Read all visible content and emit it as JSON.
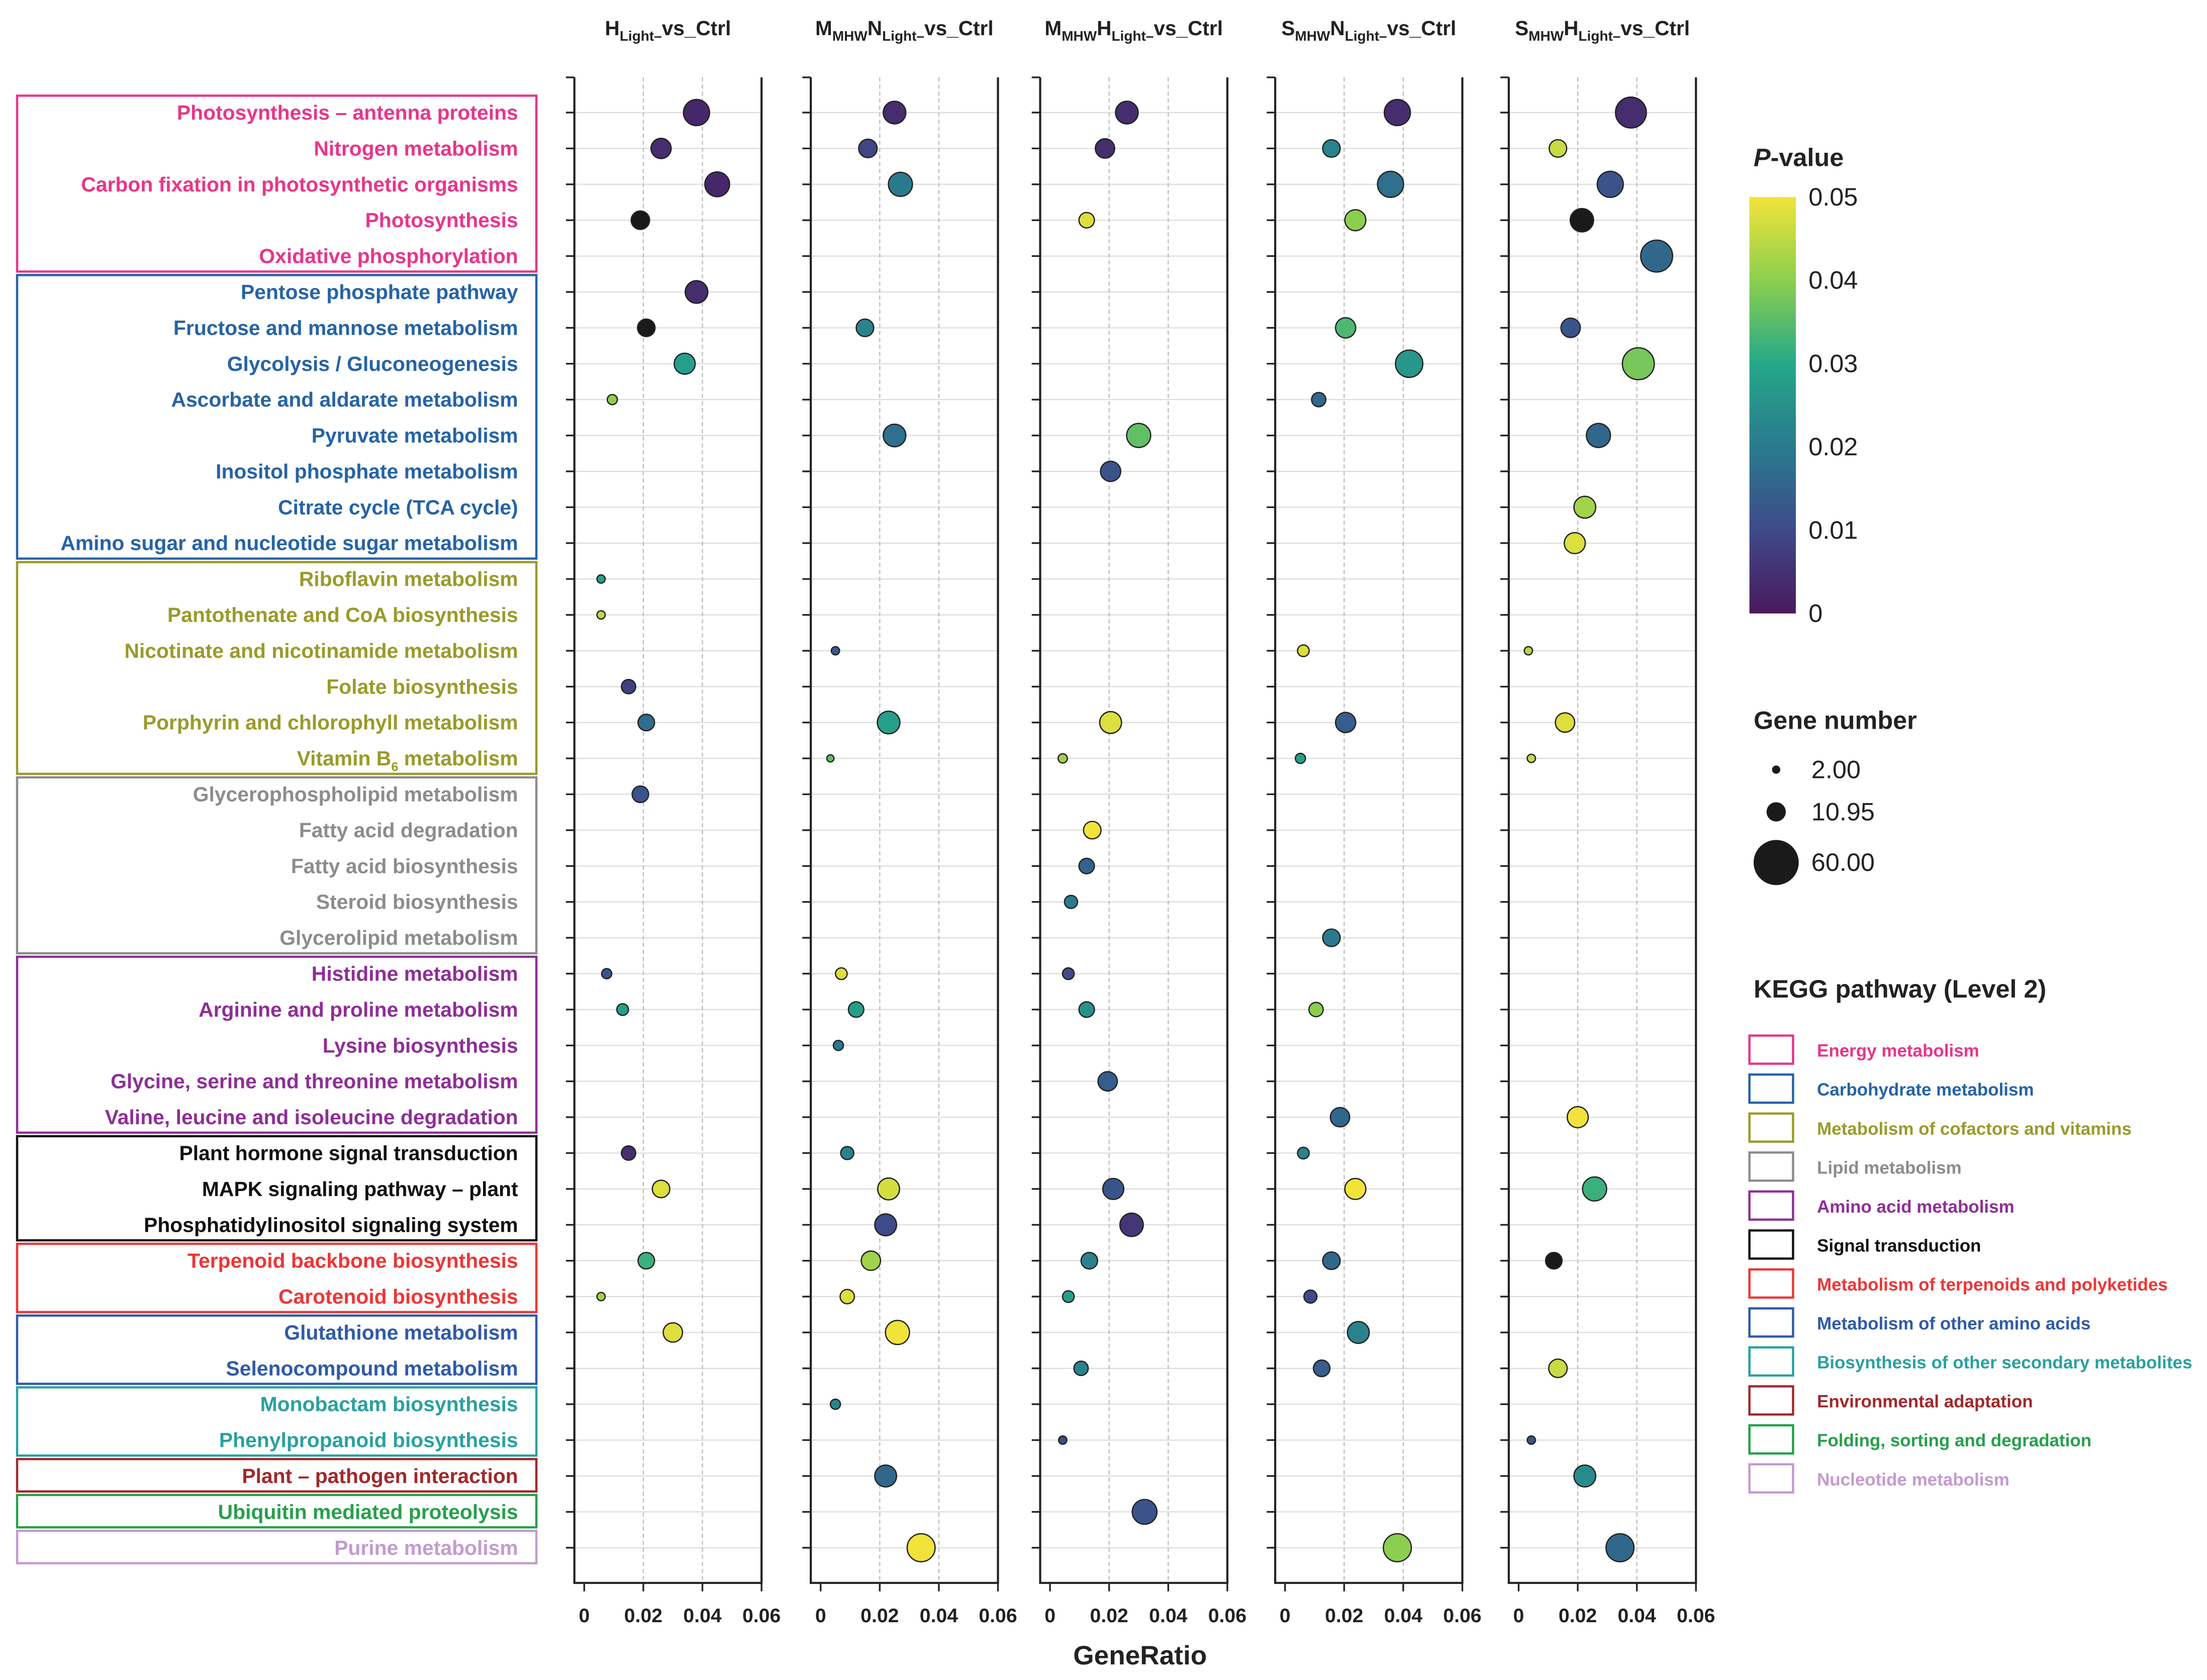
{
  "chart_data": {
    "type": "scatter",
    "subtype": "bubble",
    "xlabel": "GeneRatio",
    "xticks": [
      "0",
      "0.02",
      "0.04",
      "0.06"
    ],
    "xlim": [
      0,
      0.06
    ],
    "grid": true,
    "panels": [
      {
        "title_parts": [
          {
            "t": "H"
          },
          {
            "t": "Light–",
            "sub": true
          },
          {
            "t": "vs_Ctrl"
          }
        ],
        "points": [
          [
            0,
            0.038,
            0.003,
            20
          ],
          [
            1,
            0.026,
            0.004,
            12
          ],
          [
            2,
            0.045,
            0.003,
            18
          ],
          [
            3,
            0.019,
            0,
            10
          ],
          [
            5,
            0.038,
            0.004,
            15
          ],
          [
            6,
            0.021,
            0,
            9
          ],
          [
            7,
            0.034,
            0.028,
            13
          ],
          [
            8,
            0.0095,
            0.04,
            3
          ],
          [
            13,
            0.0057,
            0.028,
            2
          ],
          [
            14,
            0.0057,
            0.045,
            2
          ],
          [
            16,
            0.015,
            0.008,
            6
          ],
          [
            17,
            0.021,
            0.017,
            8
          ],
          [
            19,
            0.019,
            0.012,
            8
          ],
          [
            24,
            0.0076,
            0.012,
            3
          ],
          [
            25,
            0.013,
            0.028,
            4
          ],
          [
            29,
            0.015,
            0.004,
            6
          ],
          [
            30,
            0.026,
            0.048,
            9
          ],
          [
            32,
            0.021,
            0.032,
            8
          ],
          [
            33,
            0.0057,
            0.042,
            2
          ],
          [
            34,
            0.03,
            0.048,
            11
          ]
        ]
      },
      {
        "title_parts": [
          {
            "t": "M"
          },
          {
            "t": "MHW",
            "sub": true
          },
          {
            "t": "N"
          },
          {
            "t": "Light–",
            "sub": true
          },
          {
            "t": "vs_Ctrl"
          }
        ],
        "points": [
          [
            0,
            0.025,
            0.004,
            15
          ],
          [
            1,
            0.016,
            0.009,
            10
          ],
          [
            2,
            0.027,
            0.02,
            17
          ],
          [
            6,
            0.015,
            0.022,
            9
          ],
          [
            9,
            0.025,
            0.018,
            15
          ],
          [
            15,
            0.005,
            0.014,
            2
          ],
          [
            17,
            0.023,
            0.028,
            15
          ],
          [
            18,
            0.0033,
            0.036,
            1.5
          ],
          [
            24,
            0.007,
            0.048,
            4
          ],
          [
            25,
            0.012,
            0.028,
            7
          ],
          [
            26,
            0.006,
            0.02,
            3
          ],
          [
            29,
            0.009,
            0.022,
            5
          ],
          [
            30,
            0.023,
            0.047,
            14
          ],
          [
            31,
            0.022,
            0.01,
            14
          ],
          [
            32,
            0.017,
            0.042,
            11
          ],
          [
            33,
            0.009,
            0.048,
            6
          ],
          [
            34,
            0.026,
            0.05,
            17
          ],
          [
            36,
            0.005,
            0.022,
            3
          ],
          [
            38,
            0.022,
            0.016,
            14
          ],
          [
            40,
            0.034,
            0.05,
            23
          ]
        ]
      },
      {
        "title_parts": [
          {
            "t": "M"
          },
          {
            "t": "MHW",
            "sub": true
          },
          {
            "t": "H"
          },
          {
            "t": "Light–",
            "sub": true
          },
          {
            "t": "vs_Ctrl"
          }
        ],
        "points": [
          [
            0,
            0.026,
            0.004,
            15
          ],
          [
            1,
            0.0186,
            0.004,
            11
          ],
          [
            3,
            0.0124,
            0.048,
            7
          ],
          [
            9,
            0.03,
            0.036,
            17
          ],
          [
            10,
            0.0205,
            0.012,
            12
          ],
          [
            17,
            0.0205,
            0.048,
            14
          ],
          [
            18,
            0.0043,
            0.042,
            2.5
          ],
          [
            20,
            0.0143,
            0.05,
            9
          ],
          [
            21,
            0.0124,
            0.015,
            7
          ],
          [
            22,
            0.0071,
            0.02,
            5
          ],
          [
            24,
            0.0062,
            0.01,
            4
          ],
          [
            25,
            0.0124,
            0.025,
            7
          ],
          [
            27,
            0.0195,
            0.014,
            11
          ],
          [
            30,
            0.0214,
            0.012,
            13
          ],
          [
            31,
            0.0276,
            0.006,
            16
          ],
          [
            32,
            0.0133,
            0.022,
            8
          ],
          [
            33,
            0.0062,
            0.028,
            4
          ],
          [
            35,
            0.0105,
            0.022,
            6
          ],
          [
            37,
            0.0043,
            0.01,
            2
          ],
          [
            39,
            0.032,
            0.012,
            18
          ]
        ]
      },
      {
        "title_parts": [
          {
            "t": "S"
          },
          {
            "t": "MHW",
            "sub": true
          },
          {
            "t": "N"
          },
          {
            "t": "Light–",
            "sub": true
          },
          {
            "t": "vs_Ctrl"
          }
        ],
        "points": [
          [
            0,
            0.038,
            0.004,
            20
          ],
          [
            1,
            0.0157,
            0.022,
            9
          ],
          [
            2,
            0.0357,
            0.018,
            20
          ],
          [
            3,
            0.0238,
            0.04,
            13
          ],
          [
            6,
            0.0205,
            0.034,
            12
          ],
          [
            7,
            0.042,
            0.026,
            22
          ],
          [
            8,
            0.0114,
            0.016,
            6
          ],
          [
            15,
            0.0062,
            0.048,
            4
          ],
          [
            17,
            0.0205,
            0.014,
            12
          ],
          [
            18,
            0.0052,
            0.028,
            3
          ],
          [
            23,
            0.0157,
            0.02,
            9
          ],
          [
            25,
            0.0105,
            0.04,
            6
          ],
          [
            28,
            0.0186,
            0.016,
            11
          ],
          [
            29,
            0.0062,
            0.022,
            4
          ],
          [
            30,
            0.0238,
            0.05,
            13
          ],
          [
            32,
            0.0157,
            0.016,
            9
          ],
          [
            33,
            0.0086,
            0.01,
            5
          ],
          [
            34,
            0.0248,
            0.022,
            14
          ],
          [
            35,
            0.0124,
            0.014,
            8
          ],
          [
            40,
            0.038,
            0.04,
            23
          ]
        ]
      },
      {
        "title_parts": [
          {
            "t": "S"
          },
          {
            "t": "MHW",
            "sub": true
          },
          {
            "t": "H"
          },
          {
            "t": "Light–",
            "sub": true
          },
          {
            "t": "vs_Ctrl"
          }
        ],
        "points": [
          [
            0,
            0.038,
            0.004,
            28
          ],
          [
            1,
            0.0133,
            0.046,
            9
          ],
          [
            2,
            0.031,
            0.012,
            20
          ],
          [
            3,
            0.0214,
            0,
            16
          ],
          [
            4,
            0.0467,
            0.016,
            30
          ],
          [
            6,
            0.0176,
            0.012,
            11
          ],
          [
            7,
            0.0405,
            0.038,
            30
          ],
          [
            9,
            0.027,
            0.016,
            17
          ],
          [
            11,
            0.0224,
            0.042,
            14
          ],
          [
            12,
            0.019,
            0.048,
            13
          ],
          [
            15,
            0.0033,
            0.044,
            2
          ],
          [
            17,
            0.0157,
            0.048,
            11
          ],
          [
            18,
            0.0043,
            0.046,
            2
          ],
          [
            28,
            0.02,
            0.05,
            13
          ],
          [
            30,
            0.0257,
            0.032,
            17
          ],
          [
            32,
            0.0119,
            0,
            8
          ],
          [
            35,
            0.0133,
            0.046,
            10
          ],
          [
            37,
            0.0043,
            0.012,
            2
          ],
          [
            38,
            0.0224,
            0.024,
            14
          ],
          [
            40,
            0.0343,
            0.016,
            23
          ]
        ]
      }
    ],
    "point_fields": [
      "row_index",
      "gene_ratio",
      "p_value",
      "gene_number"
    ],
    "pathways": [
      {
        "label": "Photosynthesis – antenna proteins",
        "group": 0
      },
      {
        "label": "Nitrogen metabolism",
        "group": 0
      },
      {
        "label": "Carbon fixation in photosynthetic organisms",
        "group": 0
      },
      {
        "label": "Photosynthesis",
        "group": 0
      },
      {
        "label": "Oxidative phosphorylation",
        "group": 0
      },
      {
        "label": "Pentose phosphate pathway",
        "group": 1
      },
      {
        "label": "Fructose and mannose metabolism",
        "group": 1
      },
      {
        "label": "Glycolysis / Gluconeogenesis",
        "group": 1
      },
      {
        "label": "Ascorbate and aldarate metabolism",
        "group": 1
      },
      {
        "label": "Pyruvate metabolism",
        "group": 1
      },
      {
        "label": "Inositol phosphate metabolism",
        "group": 1
      },
      {
        "label": "Citrate cycle (TCA cycle)",
        "group": 1
      },
      {
        "label": "Amino sugar and nucleotide sugar metabolism",
        "group": 1
      },
      {
        "label": "Riboflavin metabolism",
        "group": 2
      },
      {
        "label": "Pantothenate and CoA biosynthesis",
        "group": 2
      },
      {
        "label": "Nicotinate and nicotinamide metabolism",
        "group": 2
      },
      {
        "label": "Folate biosynthesis",
        "group": 2
      },
      {
        "label": "Porphyrin and chlorophyll metabolism",
        "group": 2
      },
      {
        "label": "Vitamin B",
        "sub": "6",
        "after": " metabolism",
        "group": 2
      },
      {
        "label": "Glycerophospholipid metabolism",
        "group": 3
      },
      {
        "label": "Fatty acid degradation",
        "group": 3
      },
      {
        "label": "Fatty acid biosynthesis",
        "group": 3
      },
      {
        "label": "Steroid biosynthesis",
        "group": 3
      },
      {
        "label": "Glycerolipid metabolism",
        "group": 3
      },
      {
        "label": "Histidine metabolism",
        "group": 4
      },
      {
        "label": "Arginine and proline metabolism",
        "group": 4
      },
      {
        "label": "Lysine biosynthesis",
        "group": 4
      },
      {
        "label": "Glycine, serine and threonine metabolism",
        "group": 4
      },
      {
        "label": "Valine, leucine and isoleucine degradation",
        "group": 4
      },
      {
        "label": "Plant hormone signal transduction",
        "group": 5
      },
      {
        "label": "MAPK signaling pathway – plant",
        "group": 5
      },
      {
        "label": "Phosphatidylinositol signaling system",
        "group": 5
      },
      {
        "label": "Terpenoid backbone biosynthesis",
        "group": 6
      },
      {
        "label": "Carotenoid biosynthesis",
        "group": 6
      },
      {
        "label": "Glutathione metabolism",
        "group": 7
      },
      {
        "label": "Selenocompound metabolism",
        "group": 7
      },
      {
        "label": "Monobactam biosynthesis",
        "group": 8
      },
      {
        "label": "Phenylpropanoid biosynthesis",
        "group": 8
      },
      {
        "label": "Plant – pathogen interaction",
        "group": 9
      },
      {
        "label": "Ubiquitin mediated proteolysis",
        "group": 10
      },
      {
        "label": "Purine metabolism",
        "group": 11
      }
    ],
    "kegg_legend": {
      "title": "KEGG pathway (Level 2)",
      "groups": [
        {
          "label": "Energy metabolism",
          "color": "#e8358a"
        },
        {
          "label": "Carbohydrate metabolism",
          "color": "#2563a6"
        },
        {
          "label": "Metabolism of cofactors and vitamins",
          "color": "#9a9a2a"
        },
        {
          "label": "Lipid metabolism",
          "color": "#8c8c8c"
        },
        {
          "label": "Amino acid metabolism",
          "color": "#8e2e96"
        },
        {
          "label": "Signal transduction",
          "color": "#111111"
        },
        {
          "label": "Metabolism of terpenoids and polyketides",
          "color": "#ee3535"
        },
        {
          "label": "Metabolism of other amino acids",
          "color": "#2f5aa8"
        },
        {
          "label": "Biosynthesis of other secondary metabolites",
          "color": "#2aa0a0"
        },
        {
          "label": "Environmental adaptation",
          "color": "#a0282c"
        },
        {
          "label": "Folding, sorting and degradation",
          "color": "#26a04a"
        },
        {
          "label": "Nucleotide metabolism",
          "color": "#c49ad0"
        }
      ]
    },
    "pvalue_legend": {
      "title_italic": "P",
      "title_rest": "-value",
      "ticks": [
        "0.05",
        "0.04",
        "0.03",
        "0.02",
        "0.01",
        "0"
      ],
      "range": [
        0,
        0.05
      ],
      "stops": [
        [
          0,
          "#4a1a5c"
        ],
        [
          0.01,
          "#3e4a8a"
        ],
        [
          0.02,
          "#2a7a8e"
        ],
        [
          0.03,
          "#25a889"
        ],
        [
          0.04,
          "#8ccf4e"
        ],
        [
          0.05,
          "#f1e33a"
        ]
      ],
      "zero_color": "#1a1a1a"
    },
    "size_legend": {
      "title": "Gene number",
      "values": [
        2.0,
        10.95,
        60.0
      ],
      "labels": [
        "2.00",
        "10.95",
        "60.00"
      ]
    }
  }
}
